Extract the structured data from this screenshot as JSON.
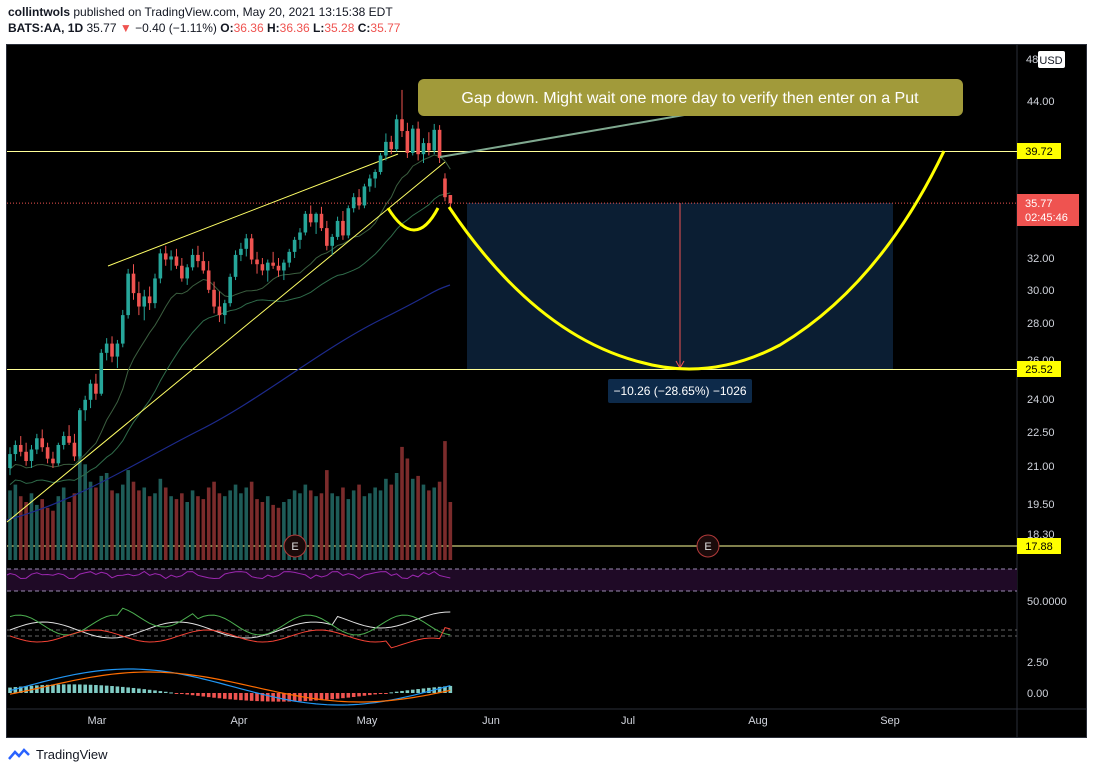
{
  "header": {
    "author": "collintwols",
    "published": "published on TradingView.com, May 20, 2021 13:15:38 EDT",
    "symbol": "BATS:AA, 1D",
    "last": "35.77",
    "arrow": "▼",
    "change": "−0.40 (−1.11%)",
    "o_label": "O:",
    "o": "36.36",
    "h_label": "H:",
    "h": "36.36",
    "l_label": "L:",
    "l": "35.28",
    "c_label": "C:",
    "c": "35.77"
  },
  "annotation": {
    "text": "Gap down. Might wait one more day to verify then enter on a Put"
  },
  "measure": {
    "text": "−10.26 (−28.65%) −1026"
  },
  "currency": "USD",
  "price_labels": {
    "resistance": "39.72",
    "current": "35.77",
    "countdown": "02:45:46",
    "support": "25.52",
    "low_line": "17.88"
  },
  "indicator_labels": {
    "rsi": "50.0000",
    "macd_top": "2.50",
    "macd_zero": "0.00"
  },
  "earnings_marker": "E",
  "colors": {
    "up": "#26a69a",
    "down": "#ef5350",
    "up_volume": "#1e5c58",
    "down_volume": "#7b2b2b",
    "annotation_bg": "#a19a3a",
    "yellow": "#ffff00",
    "range_box": "#0b1e33"
  },
  "footer": {
    "brand": "TradingView"
  },
  "chart_data": {
    "type": "candlestick",
    "symbol": "BATS:AA",
    "interval": "1D",
    "y_scale": "log",
    "x_ticks": [
      "Mar",
      "Apr",
      "May",
      "Jun",
      "Jul",
      "Aug",
      "Sep"
    ],
    "y_ticks": [
      "44.00",
      "32.00",
      "30.00",
      "28.00",
      "26.00",
      "24.00",
      "22.50",
      "21.00",
      "19.50",
      "18.30"
    ],
    "y_range": [
      17.5,
      48
    ],
    "ohlc": [
      [
        20.9,
        21.8,
        20.6,
        21.5
      ],
      [
        21.5,
        22.1,
        21.2,
        21.9
      ],
      [
        21.9,
        22.3,
        21.4,
        21.6
      ],
      [
        21.6,
        22.0,
        21.0,
        21.2
      ],
      [
        21.2,
        21.9,
        20.9,
        21.7
      ],
      [
        21.7,
        22.4,
        21.5,
        22.2
      ],
      [
        22.2,
        22.6,
        21.6,
        21.8
      ],
      [
        21.8,
        22.0,
        21.1,
        21.3
      ],
      [
        21.3,
        21.6,
        20.9,
        21.1
      ],
      [
        21.1,
        22.0,
        21.0,
        21.9
      ],
      [
        21.9,
        22.5,
        21.7,
        22.3
      ],
      [
        22.3,
        22.8,
        21.9,
        22.0
      ],
      [
        22.0,
        22.4,
        21.2,
        21.4
      ],
      [
        21.4,
        23.6,
        21.3,
        23.5
      ],
      [
        23.5,
        24.2,
        23.0,
        24.0
      ],
      [
        24.0,
        25.0,
        23.6,
        24.8
      ],
      [
        24.8,
        25.3,
        24.0,
        24.3
      ],
      [
        24.3,
        26.6,
        24.2,
        26.4
      ],
      [
        26.4,
        27.2,
        26.0,
        26.9
      ],
      [
        26.9,
        27.3,
        25.9,
        26.2
      ],
      [
        26.2,
        27.1,
        25.6,
        26.9
      ],
      [
        26.9,
        28.8,
        26.7,
        28.5
      ],
      [
        28.5,
        31.3,
        28.3,
        31.0
      ],
      [
        31.0,
        31.6,
        29.4,
        29.8
      ],
      [
        29.8,
        30.5,
        28.5,
        29.0
      ],
      [
        29.0,
        30.0,
        28.2,
        29.6
      ],
      [
        29.6,
        30.2,
        28.8,
        29.2
      ],
      [
        29.2,
        31.0,
        28.9,
        30.7
      ],
      [
        30.7,
        32.6,
        30.4,
        32.3
      ],
      [
        32.3,
        32.8,
        31.5,
        31.9
      ],
      [
        31.9,
        32.5,
        31.2,
        32.1
      ],
      [
        32.1,
        32.6,
        31.3,
        31.5
      ],
      [
        31.5,
        32.0,
        30.5,
        30.7
      ],
      [
        30.7,
        31.6,
        30.3,
        31.4
      ],
      [
        31.4,
        32.6,
        31.2,
        32.2
      ],
      [
        32.2,
        32.8,
        31.4,
        31.8
      ],
      [
        31.8,
        32.4,
        31.0,
        31.2
      ],
      [
        31.2,
        31.8,
        29.8,
        30.0
      ],
      [
        30.0,
        30.5,
        28.6,
        29.0
      ],
      [
        29.0,
        29.9,
        28.1,
        28.5
      ],
      [
        28.5,
        29.4,
        28.0,
        29.2
      ],
      [
        29.2,
        31.0,
        29.0,
        30.8
      ],
      [
        30.8,
        32.5,
        30.6,
        32.2
      ],
      [
        32.2,
        33.0,
        31.8,
        32.6
      ],
      [
        32.6,
        33.6,
        32.1,
        33.3
      ],
      [
        33.3,
        33.6,
        31.6,
        31.9
      ],
      [
        31.9,
        32.4,
        31.0,
        31.6
      ],
      [
        31.6,
        32.0,
        30.9,
        31.2
      ],
      [
        31.2,
        31.9,
        30.5,
        31.7
      ],
      [
        31.7,
        32.4,
        31.3,
        31.5
      ],
      [
        31.5,
        32.0,
        30.8,
        31.2
      ],
      [
        31.2,
        31.9,
        30.6,
        31.7
      ],
      [
        31.7,
        32.6,
        31.4,
        32.4
      ],
      [
        32.4,
        33.4,
        32.0,
        33.2
      ],
      [
        33.2,
        34.0,
        32.6,
        33.7
      ],
      [
        33.7,
        35.2,
        33.5,
        35.0
      ],
      [
        35.0,
        35.6,
        34.1,
        34.4
      ],
      [
        34.4,
        35.1,
        33.6,
        35.0
      ],
      [
        35.0,
        35.5,
        33.8,
        34.0
      ],
      [
        34.0,
        34.5,
        32.5,
        32.8
      ],
      [
        32.8,
        33.6,
        32.2,
        33.4
      ],
      [
        33.4,
        34.8,
        33.2,
        34.5
      ],
      [
        34.5,
        35.2,
        33.2,
        33.5
      ],
      [
        33.5,
        35.6,
        33.3,
        35.4
      ],
      [
        35.4,
        36.5,
        35.1,
        36.2
      ],
      [
        36.2,
        36.8,
        35.3,
        35.6
      ],
      [
        35.6,
        37.2,
        35.4,
        37.0
      ],
      [
        37.0,
        37.9,
        36.6,
        37.6
      ],
      [
        37.6,
        38.3,
        36.9,
        38.1
      ],
      [
        38.1,
        39.6,
        37.9,
        39.4
      ],
      [
        39.4,
        41.2,
        39.0,
        40.5
      ],
      [
        40.5,
        41.0,
        39.5,
        39.9
      ],
      [
        39.9,
        42.8,
        39.7,
        42.4
      ],
      [
        42.4,
        45.0,
        40.9,
        41.4
      ],
      [
        41.4,
        42.1,
        39.2,
        39.6
      ],
      [
        39.6,
        41.9,
        39.4,
        41.6
      ],
      [
        41.6,
        42.2,
        39.0,
        39.5
      ],
      [
        39.5,
        40.8,
        38.8,
        40.4
      ],
      [
        40.4,
        41.3,
        39.4,
        39.8
      ],
      [
        39.8,
        42.0,
        39.5,
        41.5
      ],
      [
        41.5,
        41.9,
        38.8,
        39.2
      ],
      [
        37.6,
        38.0,
        35.9,
        36.2
      ],
      [
        36.36,
        36.36,
        35.28,
        35.77
      ]
    ],
    "volume": [
      48,
      52,
      44,
      40,
      46,
      38,
      42,
      36,
      34,
      44,
      50,
      40,
      46,
      88,
      66,
      54,
      50,
      58,
      60,
      48,
      46,
      52,
      62,
      54,
      48,
      50,
      44,
      46,
      56,
      50,
      44,
      42,
      46,
      40,
      48,
      44,
      42,
      50,
      54,
      46,
      44,
      48,
      52,
      46,
      50,
      54,
      42,
      40,
      44,
      38,
      36,
      40,
      42,
      48,
      46,
      52,
      48,
      44,
      46,
      62,
      46,
      44,
      50,
      42,
      48,
      52,
      44,
      46,
      50,
      48,
      56,
      52,
      60,
      78,
      70,
      56,
      58,
      52,
      48,
      50,
      54,
      82,
      40
    ],
    "levels": {
      "resistance": 39.72,
      "support": 25.52,
      "low": 17.88,
      "current": 35.77
    },
    "measure": {
      "change": -10.26,
      "change_pct": -28.65,
      "ticks": -1026
    }
  }
}
